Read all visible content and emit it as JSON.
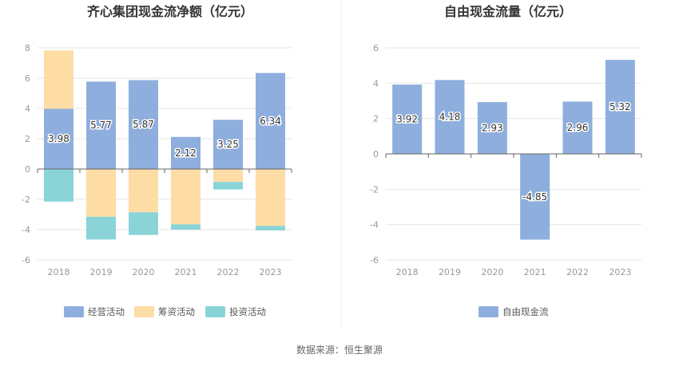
{
  "source_text": "数据来源：恒生聚源",
  "colors": {
    "operating": "#8eaedd",
    "financing": "#fddca6",
    "investing": "#8ad4d8",
    "fcf": "#8eaedd",
    "grid": "#e6e6e6",
    "axis": "#666666",
    "divider": "#eeeeee"
  },
  "chart_data": [
    {
      "type": "bar",
      "stacked": true,
      "title": "齐心集团现金流净额（亿元）",
      "categories": [
        "2018",
        "2019",
        "2020",
        "2021",
        "2022",
        "2023"
      ],
      "ylim": [
        -6,
        8
      ],
      "yticks": [
        -6,
        -4,
        -2,
        0,
        2,
        4,
        6,
        8
      ],
      "grid": true,
      "legend_position": "bottom",
      "series": [
        {
          "name": "经营活动",
          "color_key": "operating",
          "values": [
            3.98,
            5.77,
            5.87,
            2.12,
            3.25,
            6.34
          ],
          "data_labels": [
            "3.98",
            "5.77",
            "5.87",
            "2.12",
            "3.25",
            "6.34"
          ]
        },
        {
          "name": "筹资活动",
          "color_key": "financing",
          "values": [
            3.85,
            -3.15,
            -2.85,
            -3.65,
            -0.85,
            -3.75
          ]
        },
        {
          "name": "投资活动",
          "color_key": "investing",
          "values": [
            -2.15,
            -1.5,
            -1.5,
            -0.35,
            -0.5,
            -0.3
          ]
        }
      ]
    },
    {
      "type": "bar",
      "stacked": false,
      "title": "自由现金流量（亿元）",
      "categories": [
        "2018",
        "2019",
        "2020",
        "2021",
        "2022",
        "2023"
      ],
      "ylim": [
        -6,
        6
      ],
      "yticks": [
        -6,
        -4,
        -2,
        0,
        2,
        4,
        6
      ],
      "grid": true,
      "legend_position": "bottom",
      "series": [
        {
          "name": "自由现金流",
          "color_key": "fcf",
          "values": [
            3.92,
            4.18,
            2.93,
            -4.85,
            2.96,
            5.32
          ],
          "data_labels": [
            "3.92",
            "4.18",
            "2.93",
            "-4.85",
            "2.96",
            "5.32"
          ]
        }
      ]
    }
  ]
}
